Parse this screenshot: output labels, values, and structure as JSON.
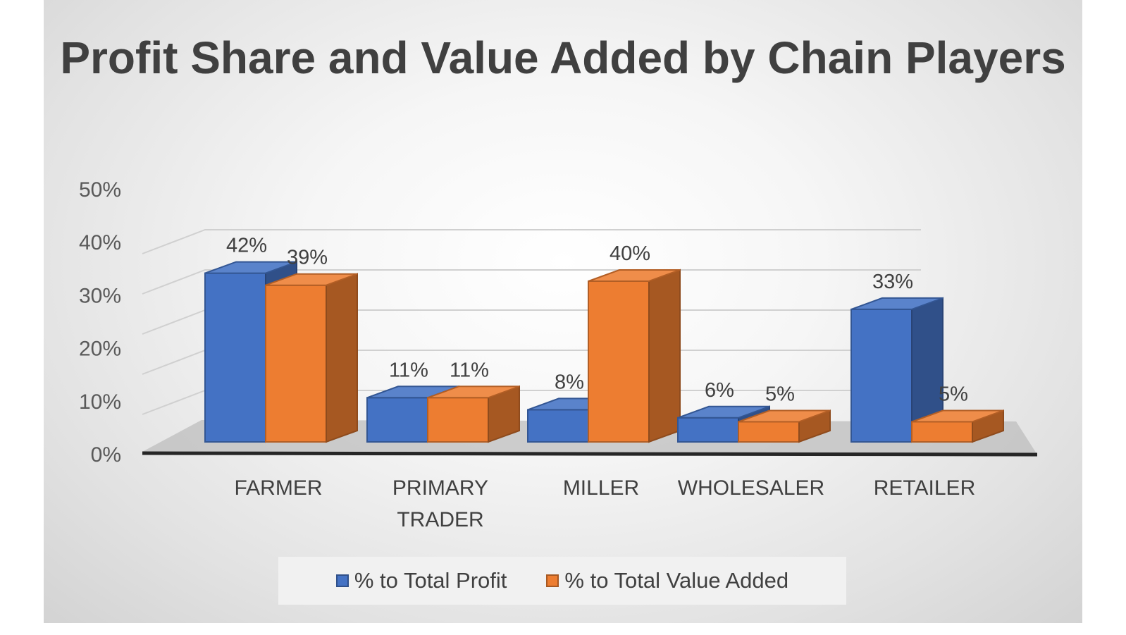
{
  "chart_data": {
    "type": "bar",
    "title": "Profit Share and Value Added by Chain Players",
    "categories": [
      "FARMER",
      "PRIMARY TRADER",
      "MILLER",
      "WHOLESALER",
      "RETAILER"
    ],
    "series": [
      {
        "name": "% to Total Profit",
        "values": [
          42,
          11,
          8,
          6,
          33
        ],
        "labels": [
          "42%",
          "11%",
          "8%",
          "6%",
          "33%"
        ],
        "color": "#4472C4"
      },
      {
        "name": "% to Total Value Added",
        "values": [
          39,
          11,
          40,
          5,
          5
        ],
        "labels": [
          "39%",
          "11%",
          "40%",
          "5%",
          "5%"
        ],
        "color": "#ED7D31"
      }
    ],
    "y_ticks": [
      "0%",
      "10%",
      "20%",
      "30%",
      "40%",
      "50%"
    ],
    "ylim": [
      0,
      50
    ],
    "grid": true,
    "legend": "bottom",
    "style": "3d-clustered-column"
  }
}
